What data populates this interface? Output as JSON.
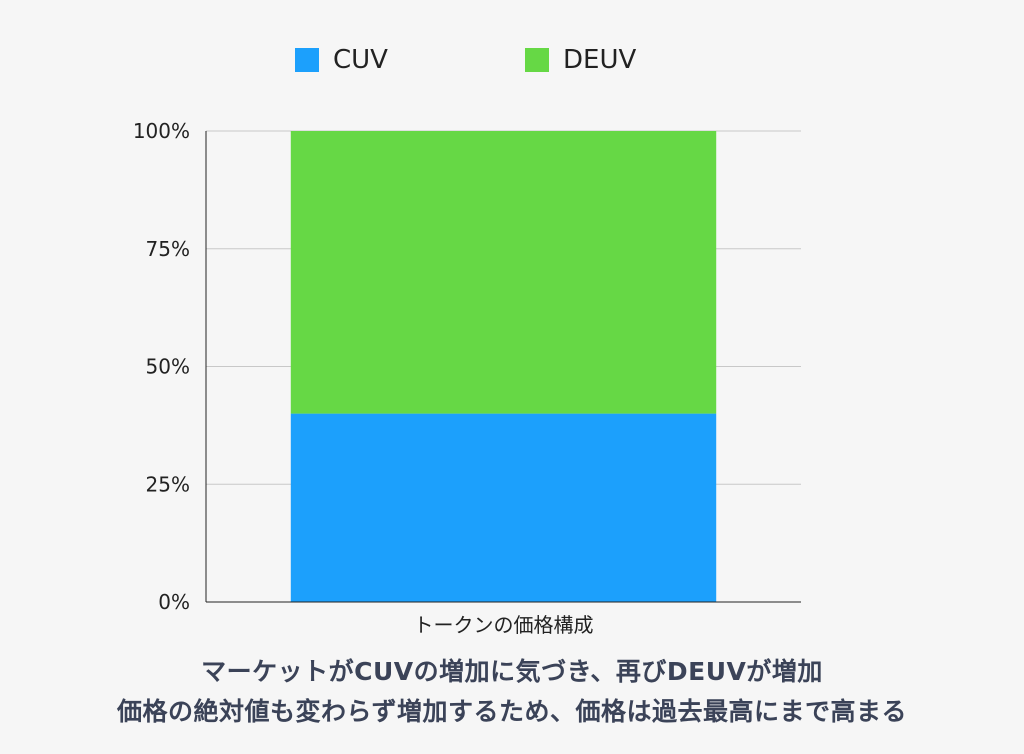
{
  "chart_data": {
    "type": "bar",
    "stacked": true,
    "percent": true,
    "categories": [
      "トークンの価格構成"
    ],
    "series": [
      {
        "name": "CUV",
        "values": [
          40
        ],
        "color": "#1ca0fc"
      },
      {
        "name": "DEUV",
        "values": [
          60
        ],
        "color": "#66d845"
      }
    ],
    "ylim": [
      0,
      100
    ],
    "yticks": [
      "0%",
      "25%",
      "50%",
      "75%",
      "100%"
    ],
    "ytick_values": [
      0,
      25,
      50,
      75,
      100
    ],
    "grid": true,
    "legend": "top"
  },
  "caption": {
    "line1": "マーケットがCUVの増加に気づき、再びDEUVが増加",
    "line2": "価格の絶対値も変わらず増加するため、価格は過去最高にまで高まる"
  }
}
